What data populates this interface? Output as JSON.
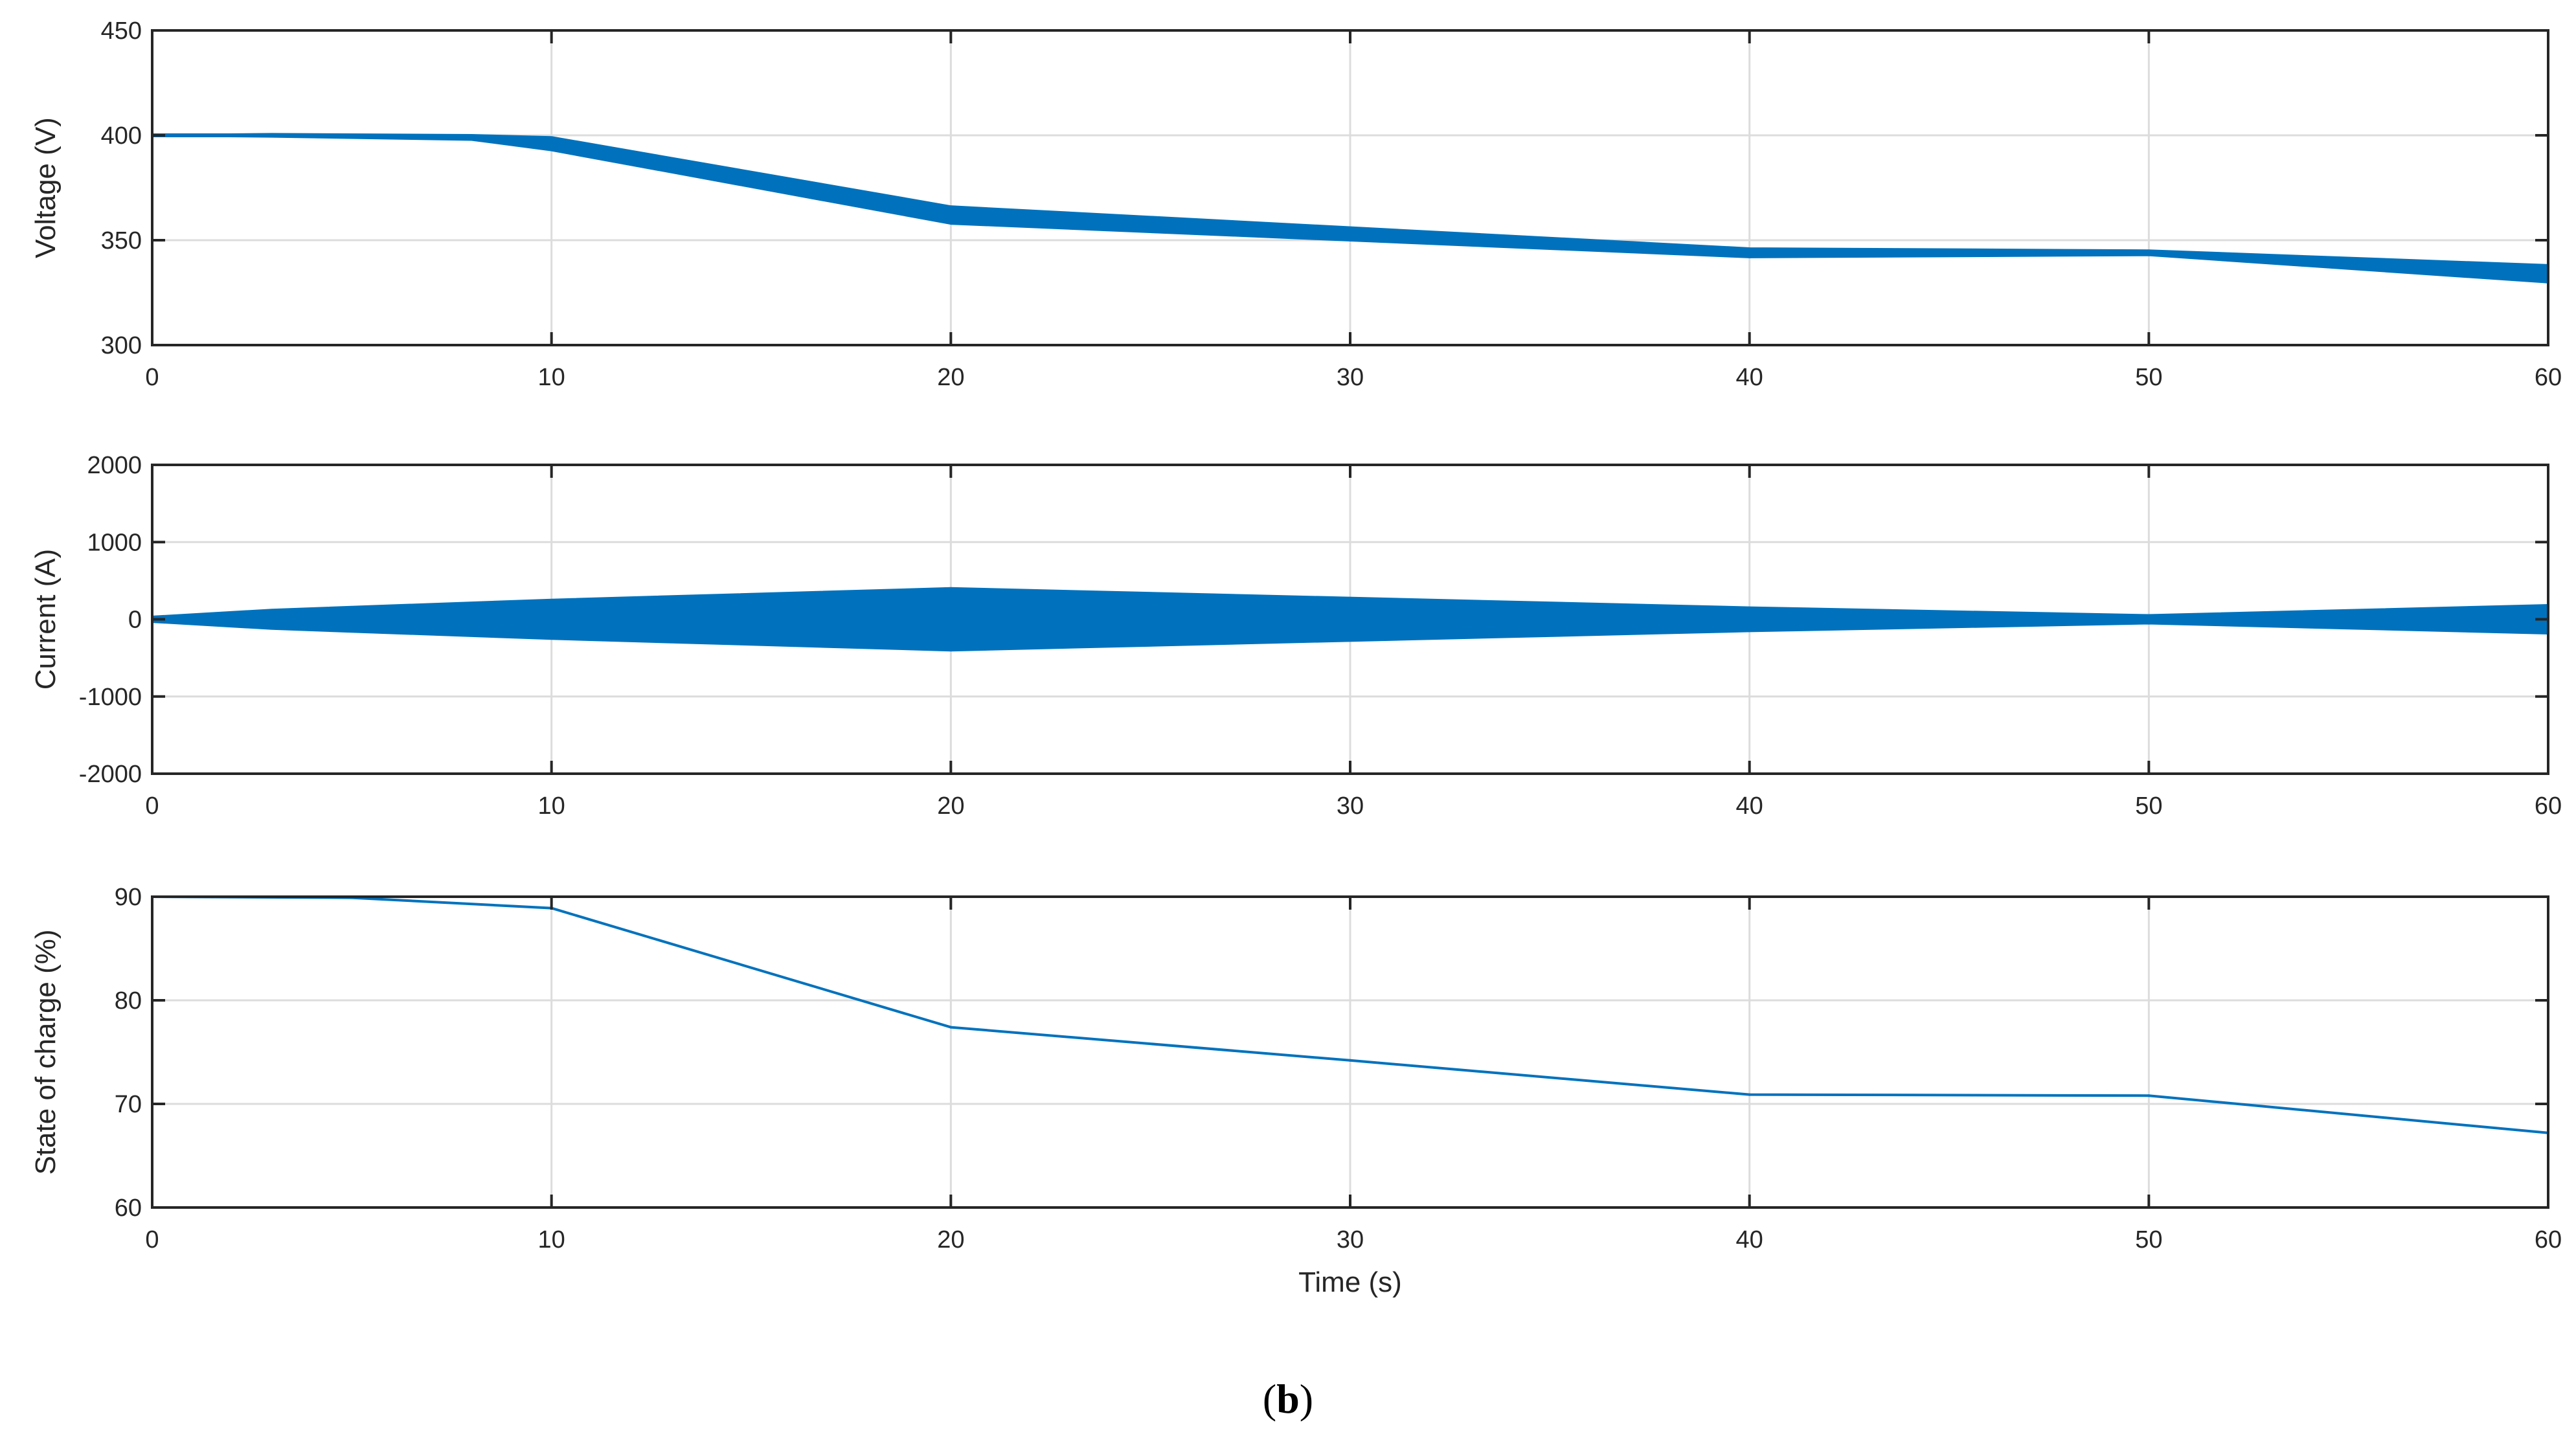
{
  "figure_label": {
    "open": "(",
    "letter": "b",
    "close": ")"
  },
  "colors": {
    "line": "#0072BD",
    "grid": "#DCDCDC",
    "axis": "#262626",
    "background": "#FFFFFF"
  },
  "chart_data": [
    {
      "type": "line",
      "title": "",
      "xlabel": "",
      "ylabel": "Voltage (V)",
      "xlim": [
        0,
        60
      ],
      "ylim": [
        300,
        450
      ],
      "xticks": [
        0,
        10,
        20,
        30,
        40,
        50,
        60
      ],
      "yticks": [
        300,
        350,
        400,
        450
      ],
      "grid": true,
      "series": [
        {
          "x": [
            0,
            3,
            8,
            10,
            20,
            40,
            50,
            60
          ],
          "y": [
            400,
            400,
            399,
            396,
            362,
            344,
            344,
            334
          ],
          "band": [
            0,
            0.5,
            1,
            3,
            4,
            2,
            1,
            4
          ]
        }
      ]
    },
    {
      "type": "line",
      "title": "",
      "xlabel": "",
      "ylabel": "Current (A)",
      "xlim": [
        0,
        60
      ],
      "ylim": [
        -2000,
        2000
      ],
      "xticks": [
        0,
        10,
        20,
        30,
        40,
        50,
        60
      ],
      "yticks": [
        -2000,
        -1000,
        0,
        1000,
        2000
      ],
      "grid": true,
      "series": [
        {
          "x": [
            0,
            3,
            10,
            20,
            40,
            50,
            60
          ],
          "y": [
            0,
            0,
            0,
            0,
            0,
            0,
            0
          ],
          "band": [
            30,
            120,
            250,
            400,
            150,
            50,
            180
          ]
        }
      ]
    },
    {
      "type": "line",
      "title": "",
      "xlabel": "Time (s)",
      "ylabel": "State of charge (%)",
      "xlim": [
        0,
        60
      ],
      "ylim": [
        60,
        90
      ],
      "xticks": [
        0,
        10,
        20,
        30,
        40,
        50,
        60
      ],
      "yticks": [
        60,
        70,
        80,
        90
      ],
      "grid": true,
      "series": [
        {
          "x": [
            0,
            5,
            10,
            20,
            30,
            40,
            50,
            60
          ],
          "y": [
            90,
            89.9,
            88.9,
            77.4,
            74.2,
            70.9,
            70.8,
            67.2
          ]
        }
      ]
    }
  ]
}
